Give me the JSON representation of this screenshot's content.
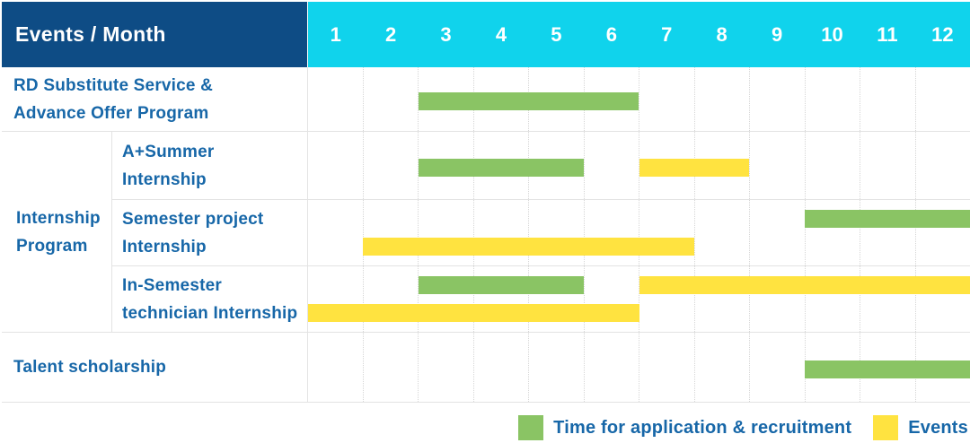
{
  "header": {
    "label": "Events / Month",
    "months": [
      "1",
      "2",
      "3",
      "4",
      "5",
      "6",
      "7",
      "8",
      "9",
      "10",
      "11",
      "12"
    ]
  },
  "group": {
    "label_lines": [
      "Internship",
      "Program"
    ]
  },
  "rows": [
    {
      "id": "rd-substitute",
      "label_lines": [
        "RD Substitute Service &",
        "Advance Offer Program"
      ],
      "group": null,
      "bars": [
        {
          "type": "recruitment",
          "start": 3,
          "end": 6,
          "lane": "single"
        }
      ]
    },
    {
      "id": "a-plus-summer-internship",
      "label_lines": [
        "A+Summer",
        "Internship"
      ],
      "group": "internship-program",
      "bars": [
        {
          "type": "recruitment",
          "start": 3,
          "end": 5,
          "lane": "single"
        },
        {
          "type": "event",
          "start": 7,
          "end": 8,
          "lane": "single"
        }
      ]
    },
    {
      "id": "semester-project-internship",
      "label_lines": [
        "Semester project",
        "Internship"
      ],
      "group": "internship-program",
      "bars": [
        {
          "type": "recruitment",
          "start": 10,
          "end": 12,
          "lane": "top"
        },
        {
          "type": "event",
          "start": 2,
          "end": 7,
          "lane": "bottom"
        }
      ]
    },
    {
      "id": "in-semester-technician-internship",
      "label_lines": [
        "In-Semester",
        "technician Internship"
      ],
      "group": "internship-program",
      "bars": [
        {
          "type": "recruitment",
          "start": 3,
          "end": 5,
          "lane": "top"
        },
        {
          "type": "event",
          "start": 7,
          "end": 12,
          "lane": "top"
        },
        {
          "type": "event",
          "start": 1,
          "end": 6,
          "lane": "bottom"
        }
      ]
    },
    {
      "id": "talent-scholarship",
      "label_lines": [
        "Talent scholarship"
      ],
      "group": null,
      "bars": [
        {
          "type": "recruitment",
          "start": 10,
          "end": 12,
          "lane": "single"
        }
      ]
    }
  ],
  "legend": [
    {
      "type": "recruitment",
      "label": "Time for application & recruitment"
    },
    {
      "type": "event",
      "label": "Events"
    }
  ],
  "colors": {
    "header_bg": "#0E4C85",
    "months_bg": "#10D3EC",
    "recruitment": "#8AC464",
    "event": "#FFE340",
    "label_text": "#1767A8",
    "header_text": "#FFFFFF"
  },
  "chart_data": {
    "type": "bar",
    "subtype": "gantt-timeline",
    "title": "Events / Month",
    "xlabel": "Month",
    "x_ticks": [
      1,
      2,
      3,
      4,
      5,
      6,
      7,
      8,
      9,
      10,
      11,
      12
    ],
    "x_range": [
      1,
      12
    ],
    "grid": true,
    "legend_position": "bottom-right",
    "legend": [
      "Time for application & recruitment",
      "Events"
    ],
    "tasks": [
      {
        "row": "RD Substitute Service & Advance Offer Program",
        "group": null,
        "bars": [
          {
            "kind": "Time for application & recruitment",
            "start_month": 3,
            "end_month": 6
          }
        ]
      },
      {
        "row": "A+Summer Internship",
        "group": "Internship Program",
        "bars": [
          {
            "kind": "Time for application & recruitment",
            "start_month": 3,
            "end_month": 5
          },
          {
            "kind": "Events",
            "start_month": 7,
            "end_month": 8
          }
        ]
      },
      {
        "row": "Semester project Internship",
        "group": "Internship Program",
        "bars": [
          {
            "kind": "Time for application & recruitment",
            "start_month": 10,
            "end_month": 12
          },
          {
            "kind": "Events",
            "start_month": 2,
            "end_month": 7
          }
        ]
      },
      {
        "row": "In-Semester technician Internship",
        "group": "Internship Program",
        "bars": [
          {
            "kind": "Time for application & recruitment",
            "start_month": 3,
            "end_month": 5
          },
          {
            "kind": "Events",
            "start_month": 7,
            "end_month": 12
          },
          {
            "kind": "Events",
            "start_month": 1,
            "end_month": 6
          }
        ]
      },
      {
        "row": "Talent scholarship",
        "group": null,
        "bars": [
          {
            "kind": "Time for application & recruitment",
            "start_month": 10,
            "end_month": 12
          }
        ]
      }
    ]
  }
}
